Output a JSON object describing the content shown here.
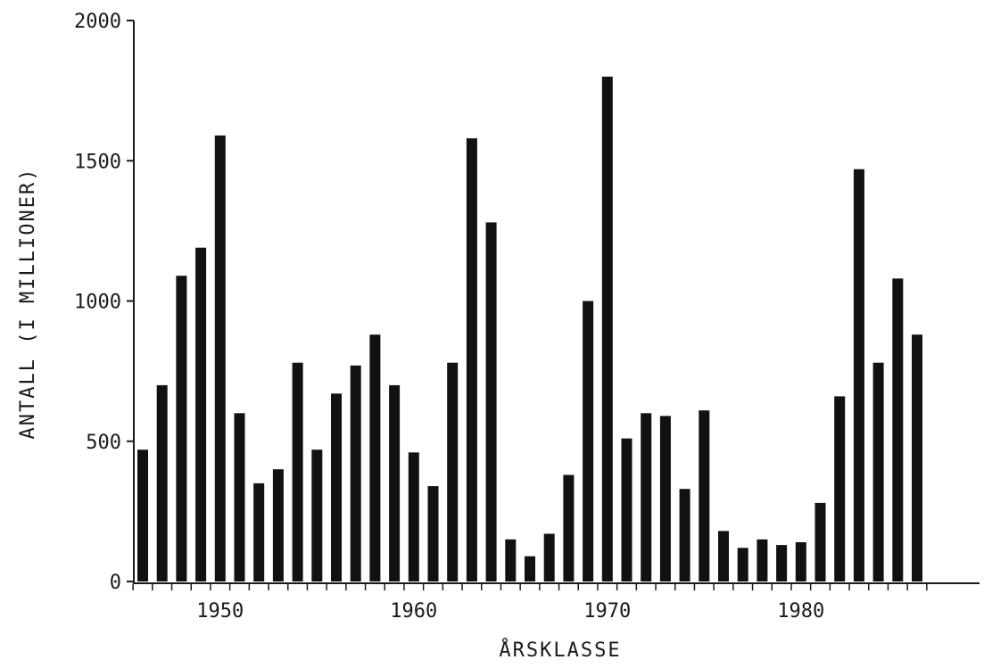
{
  "chart_data": {
    "type": "bar",
    "title": "",
    "xlabel": "ÅRSKLASSE",
    "ylabel": "ANTALL (I MILLIONER)",
    "ylim": [
      0,
      2000
    ],
    "yticks": [
      0,
      500,
      1000,
      1500,
      2000
    ],
    "xticks": [
      1950,
      1960,
      1970,
      1980
    ],
    "grid": false,
    "bar_color": "#111111",
    "x": [
      1946,
      1947,
      1948,
      1949,
      1950,
      1951,
      1952,
      1953,
      1954,
      1955,
      1956,
      1957,
      1958,
      1959,
      1960,
      1961,
      1962,
      1963,
      1964,
      1965,
      1966,
      1967,
      1968,
      1969,
      1970,
      1971,
      1972,
      1973,
      1974,
      1975,
      1976,
      1977,
      1978,
      1979,
      1980,
      1981,
      1982,
      1983,
      1984,
      1985,
      1986
    ],
    "values": [
      470,
      700,
      1090,
      1190,
      1590,
      600,
      350,
      400,
      780,
      470,
      670,
      770,
      880,
      700,
      460,
      340,
      780,
      1580,
      1280,
      150,
      90,
      170,
      380,
      1000,
      1800,
      510,
      600,
      590,
      330,
      610,
      180,
      120,
      150,
      130,
      140,
      280,
      660,
      1470,
      780,
      1080,
      880
    ]
  }
}
